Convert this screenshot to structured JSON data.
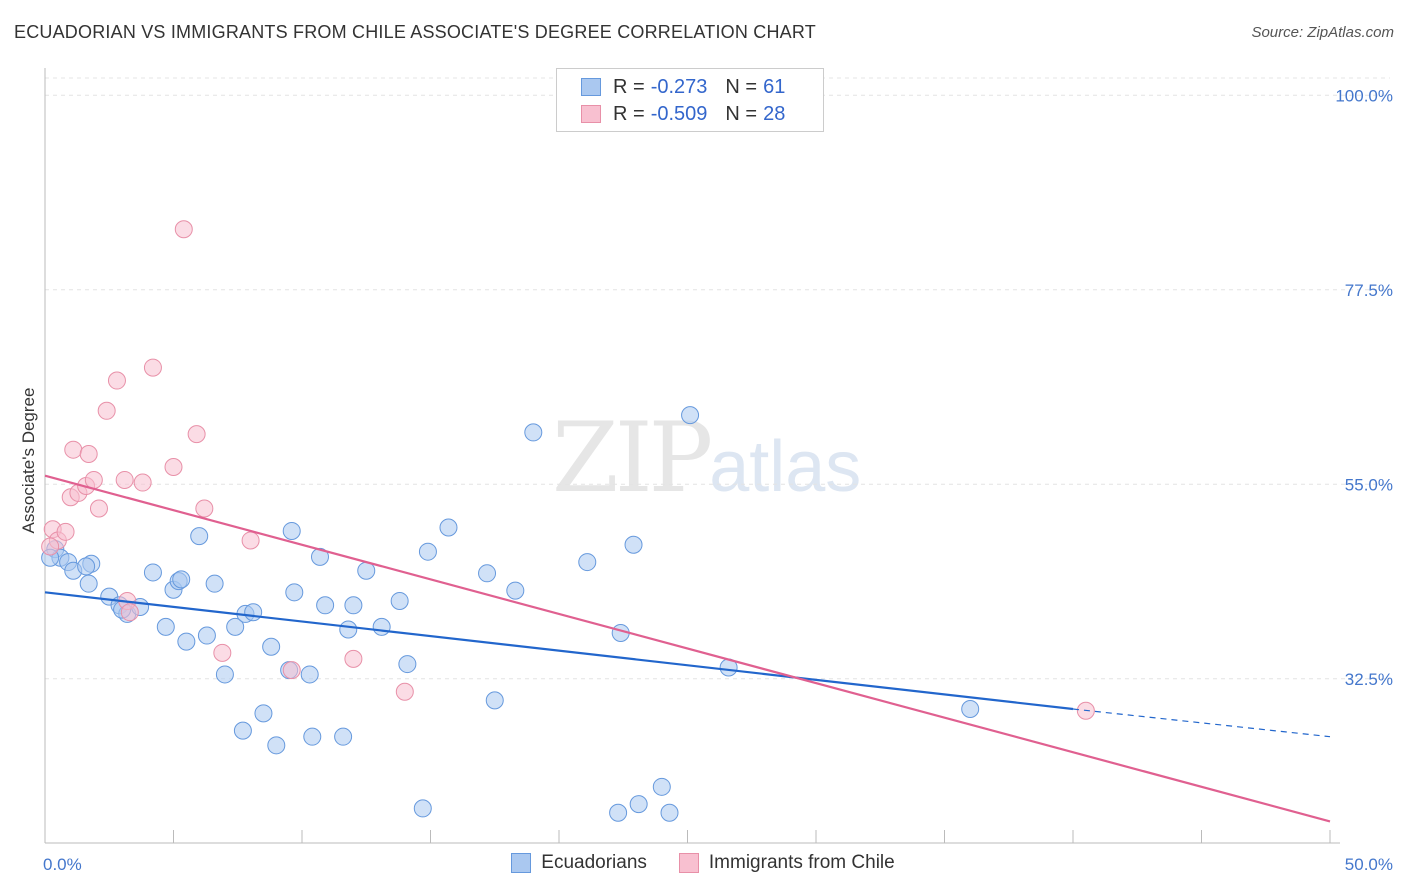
{
  "title": "ECUADORIAN VS IMMIGRANTS FROM CHILE ASSOCIATE'S DEGREE CORRELATION CHART",
  "source": "Source: ZipAtlas.com",
  "watermark": {
    "zip": "ZIP",
    "atlas": "atlas"
  },
  "legend": {
    "rows": [
      {
        "r_label": "R =",
        "r_value": "-0.273",
        "n_label": "N =",
        "n_value": "61",
        "color": "#aac8f0",
        "border": "#6699dd"
      },
      {
        "r_label": "R =",
        "r_value": "-0.509",
        "n_label": "N =",
        "n_value": "28",
        "color": "#f8c0d0",
        "border": "#e890a8"
      }
    ]
  },
  "bottom_legend": [
    {
      "label": "Ecuadorians",
      "color": "#aac8f0",
      "border": "#6699dd"
    },
    {
      "label": "Immigrants from Chile",
      "color": "#f8c0d0",
      "border": "#e890a8"
    }
  ],
  "chart_data": {
    "type": "scatter",
    "ylabel": "Associate's Degree",
    "xlabel": "",
    "x_tick_labels": [
      "0.0%",
      "50.0%"
    ],
    "y_tick_labels": [
      "100.0%",
      "77.5%",
      "55.0%",
      "32.5%"
    ],
    "y_ticks": [
      100.0,
      77.5,
      55.0,
      32.5
    ],
    "xlim": [
      0,
      50
    ],
    "ylim": [
      13.5,
      102
    ],
    "grid": true,
    "series": [
      {
        "name": "Ecuadorians",
        "color": "#aac8f0",
        "stroke": "#6699dd",
        "trend": {
          "x0": 0,
          "y0": 42.5,
          "x1": 40,
          "y1": 29.0,
          "dash_to_x": 50,
          "dash_to_y": 25.8,
          "color": "#2266cc"
        },
        "points": [
          [
            0.4,
            47.5
          ],
          [
            0.6,
            46.5
          ],
          [
            0.9,
            46.0
          ],
          [
            1.1,
            45.0
          ],
          [
            1.8,
            45.8
          ],
          [
            1.7,
            43.5
          ],
          [
            2.5,
            42.0
          ],
          [
            2.9,
            41.0
          ],
          [
            3.2,
            40.0
          ],
          [
            3.7,
            40.8
          ],
          [
            4.2,
            44.8
          ],
          [
            4.7,
            38.5
          ],
          [
            5.0,
            42.8
          ],
          [
            5.2,
            43.8
          ],
          [
            5.5,
            36.8
          ],
          [
            6.0,
            49.0
          ],
          [
            6.3,
            37.5
          ],
          [
            6.6,
            43.5
          ],
          [
            7.0,
            33.0
          ],
          [
            7.4,
            38.5
          ],
          [
            7.7,
            26.5
          ],
          [
            7.8,
            40.0
          ],
          [
            8.1,
            40.2
          ],
          [
            8.5,
            28.5
          ],
          [
            8.8,
            36.2
          ],
          [
            9.0,
            24.8
          ],
          [
            9.5,
            33.5
          ],
          [
            9.6,
            49.6
          ],
          [
            9.7,
            42.5
          ],
          [
            10.3,
            33.0
          ],
          [
            10.4,
            25.8
          ],
          [
            10.7,
            46.6
          ],
          [
            10.9,
            41.0
          ],
          [
            11.6,
            25.8
          ],
          [
            11.8,
            38.2
          ],
          [
            12.0,
            41.0
          ],
          [
            12.5,
            45.0
          ],
          [
            13.1,
            38.5
          ],
          [
            13.8,
            41.5
          ],
          [
            14.1,
            34.2
          ],
          [
            14.7,
            17.5
          ],
          [
            14.9,
            47.2
          ],
          [
            15.7,
            50.0
          ],
          [
            17.2,
            44.7
          ],
          [
            17.5,
            30.0
          ],
          [
            18.3,
            42.7
          ],
          [
            19.0,
            61.0
          ],
          [
            21.1,
            46.0
          ],
          [
            22.3,
            17.0
          ],
          [
            22.4,
            37.8
          ],
          [
            22.9,
            48.0
          ],
          [
            23.1,
            18.0
          ],
          [
            24.0,
            20.0
          ],
          [
            24.3,
            17.0
          ],
          [
            25.1,
            63.0
          ],
          [
            26.6,
            33.8
          ],
          [
            36.0,
            29.0
          ],
          [
            0.2,
            46.5
          ],
          [
            3.0,
            40.5
          ],
          [
            5.3,
            44.0
          ],
          [
            1.6,
            45.5
          ]
        ]
      },
      {
        "name": "Immigrants from Chile",
        "color": "#f8c0d0",
        "stroke": "#e890a8",
        "trend": {
          "x0": 0,
          "y0": 56.0,
          "x1": 50,
          "y1": 16.0,
          "color": "#e06090"
        },
        "points": [
          [
            0.3,
            49.8
          ],
          [
            0.5,
            48.5
          ],
          [
            0.8,
            49.5
          ],
          [
            1.0,
            53.5
          ],
          [
            1.1,
            59.0
          ],
          [
            1.3,
            54.0
          ],
          [
            1.6,
            54.8
          ],
          [
            1.7,
            58.5
          ],
          [
            1.9,
            55.5
          ],
          [
            2.1,
            52.2
          ],
          [
            2.4,
            63.5
          ],
          [
            2.8,
            67.0
          ],
          [
            3.1,
            55.5
          ],
          [
            3.2,
            41.5
          ],
          [
            3.3,
            40.2
          ],
          [
            3.8,
            55.2
          ],
          [
            4.2,
            68.5
          ],
          [
            5.0,
            57.0
          ],
          [
            5.4,
            84.5
          ],
          [
            5.9,
            60.8
          ],
          [
            6.2,
            52.2
          ],
          [
            6.9,
            35.5
          ],
          [
            8.0,
            48.5
          ],
          [
            9.6,
            33.5
          ],
          [
            12.0,
            34.8
          ],
          [
            14.0,
            31.0
          ],
          [
            40.5,
            28.8
          ],
          [
            0.2,
            47.8
          ]
        ]
      }
    ]
  }
}
